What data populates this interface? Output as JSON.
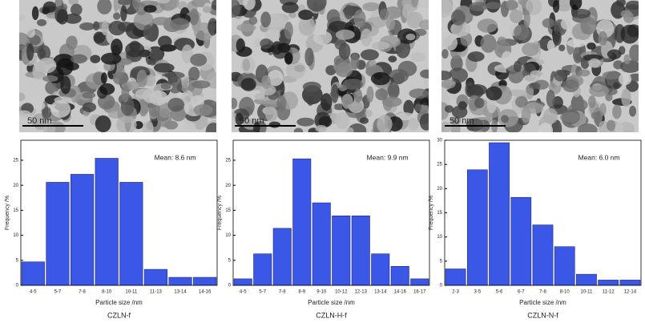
{
  "chart_data": [
    {
      "type": "bar",
      "scale_bar": "50 nm",
      "annotation": "Mean: 8.6 nm",
      "x_label": "Particle size /nm",
      "y_label": "Frequency /%",
      "caption": "CZLN-f",
      "categories": [
        "4-5",
        "5-7",
        "7-8",
        "8-10",
        "10-11",
        "11-13",
        "13-14",
        "14-16"
      ],
      "values": [
        4.7,
        20.6,
        22.2,
        25.4,
        20.6,
        3.2,
        1.6,
        1.6
      ],
      "color": "#3b57e6",
      "ylim": [
        0,
        29
      ],
      "yticks": [
        0,
        5,
        10,
        15,
        20,
        25
      ]
    },
    {
      "type": "bar",
      "scale_bar": "50 nm",
      "annotation": "Mean: 9.9 nm",
      "x_label": "Particle size /nm",
      "y_label": "Frequency /%",
      "caption": "CZLN-H-f",
      "categories": [
        "4-5",
        "5-7",
        "7-8",
        "8-9",
        "9-10",
        "10-12",
        "12-13",
        "13-14",
        "14-16",
        "16-17"
      ],
      "values": [
        1.3,
        6.3,
        11.4,
        25.3,
        16.5,
        13.9,
        13.9,
        6.3,
        3.8,
        1.3
      ],
      "color": "#3b57e6",
      "ylim": [
        0,
        29
      ],
      "yticks": [
        0,
        5,
        10,
        15,
        20,
        25
      ]
    },
    {
      "type": "bar",
      "scale_bar": "50 nm",
      "annotation": "Mean: 6.0 nm",
      "x_label": "Particle size /nm",
      "y_label": "Frequency /%",
      "caption": "CZLN-N-f",
      "categories": [
        "2-3",
        "3-5",
        "5-6",
        "6-7",
        "7-8",
        "8-10",
        "10-11",
        "11-12",
        "12-14"
      ],
      "values": [
        3.4,
        23.9,
        29.5,
        18.2,
        12.5,
        8.0,
        2.3,
        1.1,
        1.1
      ],
      "color": "#3b57e6",
      "ylim": [
        0,
        30
      ],
      "yticks": [
        0,
        5,
        10,
        15,
        20,
        25,
        30
      ]
    }
  ]
}
